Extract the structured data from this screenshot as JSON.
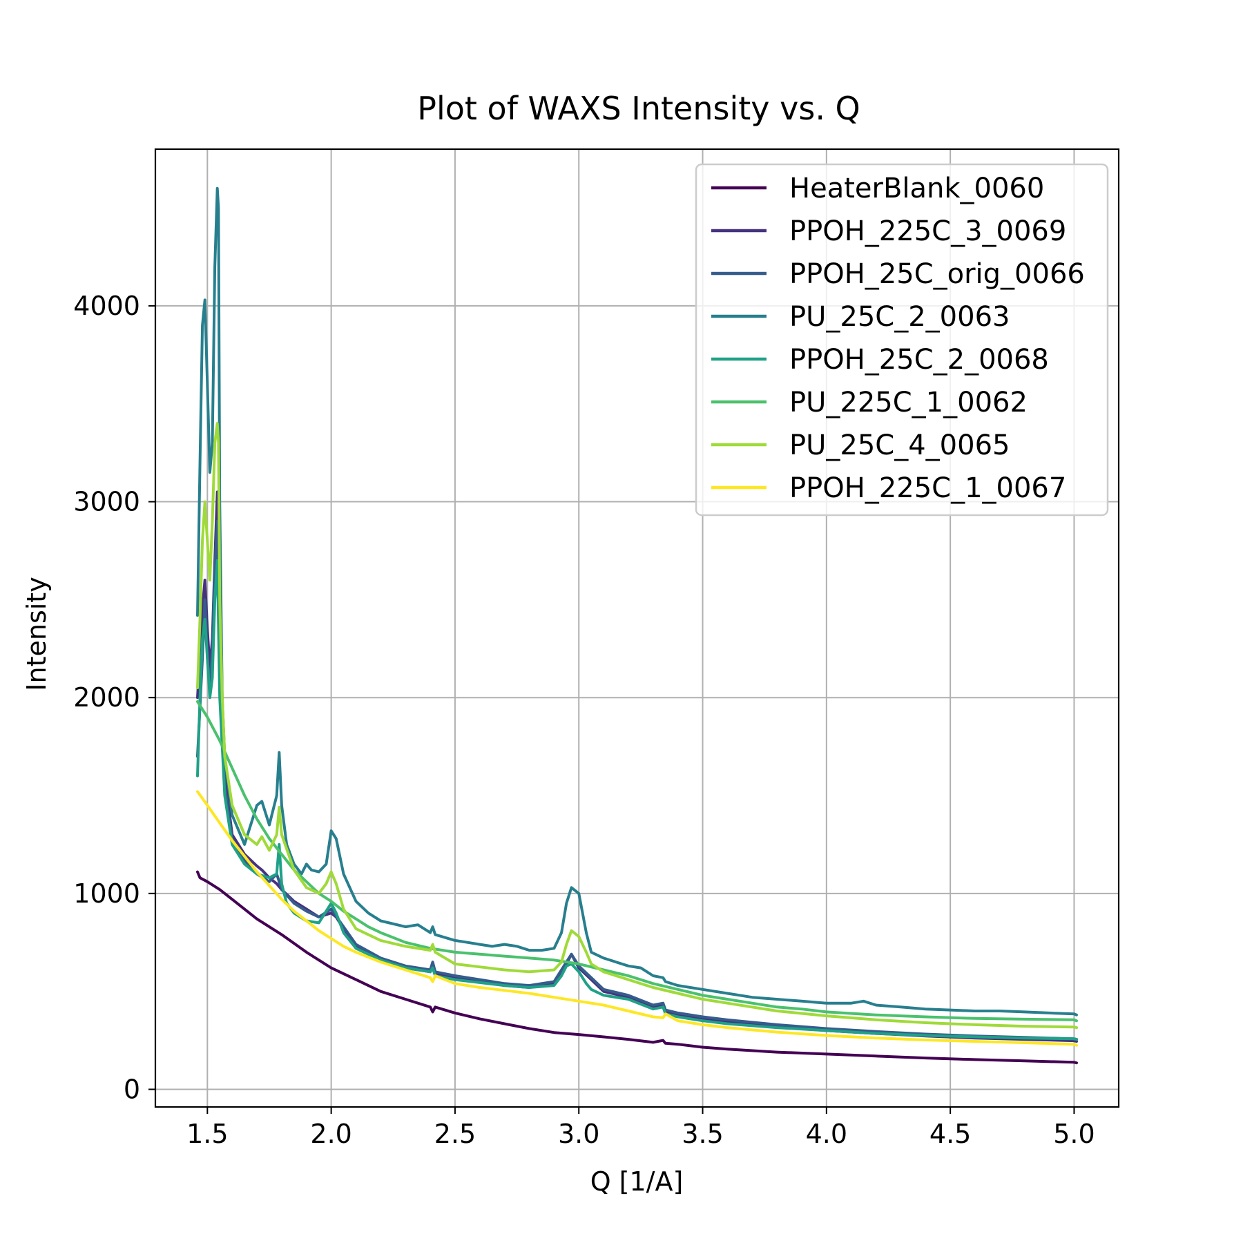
{
  "chart_data": {
    "type": "line",
    "title": "Plot of WAXS Intensity vs. Q",
    "xlabel": "Q [1/A]",
    "ylabel": "Intensity",
    "xlim": [
      1.29,
      5.18
    ],
    "ylim": [
      -90,
      4800
    ],
    "xticks": [
      1.5,
      2.0,
      2.5,
      3.0,
      3.5,
      4.0,
      4.5,
      5.0
    ],
    "xtick_labels": [
      "1.5",
      "2.0",
      "2.5",
      "3.0",
      "3.5",
      "4.0",
      "4.5",
      "5.0"
    ],
    "yticks": [
      0,
      1000,
      2000,
      3000,
      4000
    ],
    "ytick_labels": [
      "0",
      "1000",
      "2000",
      "3000",
      "4000"
    ],
    "grid": true,
    "legend_position": "upper right",
    "series": [
      {
        "name": "HeaterBlank_0060",
        "color": "#440154",
        "x": [
          1.46,
          1.47,
          1.5,
          1.55,
          1.6,
          1.7,
          1.8,
          1.9,
          2.0,
          2.1,
          2.2,
          2.3,
          2.4,
          2.41,
          2.42,
          2.5,
          2.6,
          2.7,
          2.8,
          2.9,
          3.0,
          3.1,
          3.2,
          3.3,
          3.34,
          3.35,
          3.4,
          3.5,
          3.6,
          3.8,
          4.0,
          4.2,
          4.4,
          4.6,
          4.8,
          5.0,
          5.01
        ],
        "y": [
          1110,
          1080,
          1060,
          1020,
          970,
          870,
          790,
          700,
          620,
          560,
          500,
          460,
          420,
          395,
          420,
          390,
          360,
          335,
          310,
          290,
          280,
          268,
          255,
          240,
          250,
          235,
          230,
          215,
          205,
          190,
          180,
          170,
          160,
          152,
          145,
          138,
          135
        ]
      },
      {
        "name": "PPOH_225C_3_0069",
        "color": "#46327e",
        "x": [
          1.46,
          1.48,
          1.49,
          1.5,
          1.51,
          1.52,
          1.53,
          1.54,
          1.55,
          1.57,
          1.6,
          1.65,
          1.7,
          1.72,
          1.75,
          1.78,
          1.8,
          1.85,
          1.9,
          1.95,
          2.0,
          2.02,
          2.05,
          2.1,
          2.2,
          2.3,
          2.4,
          2.41,
          2.42,
          2.5,
          2.6,
          2.7,
          2.8,
          2.9,
          2.95,
          2.97,
          3.0,
          3.05,
          3.1,
          3.2,
          3.3,
          3.34,
          3.35,
          3.4,
          3.5,
          3.6,
          3.8,
          4.0,
          4.2,
          4.4,
          4.6,
          4.8,
          5.0,
          5.01
        ],
        "y": [
          2000,
          2450,
          2600,
          2350,
          2150,
          2300,
          2700,
          3050,
          2200,
          1600,
          1300,
          1200,
          1140,
          1120,
          1080,
          1050,
          1020,
          960,
          920,
          880,
          900,
          880,
          820,
          730,
          660,
          620,
          600,
          640,
          590,
          570,
          550,
          530,
          520,
          540,
          640,
          690,
          620,
          560,
          500,
          470,
          420,
          430,
          395,
          380,
          360,
          345,
          320,
          300,
          285,
          272,
          262,
          255,
          248,
          245
        ]
      },
      {
        "name": "PPOH_25C_orig_0066",
        "color": "#365c8d",
        "x": [
          1.46,
          1.48,
          1.49,
          1.5,
          1.51,
          1.52,
          1.53,
          1.54,
          1.55,
          1.57,
          1.6,
          1.65,
          1.7,
          1.75,
          1.78,
          1.8,
          1.85,
          1.9,
          1.95,
          2.0,
          2.05,
          2.1,
          2.2,
          2.3,
          2.4,
          2.41,
          2.42,
          2.5,
          2.6,
          2.7,
          2.8,
          2.9,
          2.95,
          2.97,
          3.0,
          3.05,
          3.1,
          3.2,
          3.3,
          3.34,
          3.35,
          3.4,
          3.5,
          3.6,
          3.8,
          4.0,
          4.2,
          4.4,
          4.6,
          4.8,
          5.0,
          5.01
        ],
        "y": [
          1700,
          2200,
          2500,
          2200,
          2050,
          2250,
          2650,
          2900,
          2100,
          1550,
          1280,
          1170,
          1100,
          1060,
          1100,
          1020,
          950,
          910,
          880,
          920,
          830,
          740,
          670,
          630,
          610,
          650,
          600,
          580,
          560,
          540,
          530,
          550,
          650,
          690,
          630,
          570,
          510,
          480,
          430,
          440,
          405,
          390,
          370,
          355,
          330,
          310,
          295,
          282,
          272,
          265,
          258,
          255
        ]
      },
      {
        "name": "PU_25C_2_0063",
        "color": "#277f8e",
        "x": [
          1.46,
          1.47,
          1.48,
          1.49,
          1.5,
          1.51,
          1.52,
          1.53,
          1.54,
          1.545,
          1.55,
          1.56,
          1.57,
          1.6,
          1.65,
          1.7,
          1.72,
          1.75,
          1.78,
          1.79,
          1.8,
          1.82,
          1.85,
          1.88,
          1.9,
          1.92,
          1.95,
          1.98,
          2.0,
          2.02,
          2.05,
          2.1,
          2.15,
          2.2,
          2.3,
          2.35,
          2.4,
          2.41,
          2.42,
          2.5,
          2.55,
          2.6,
          2.65,
          2.7,
          2.75,
          2.8,
          2.85,
          2.9,
          2.93,
          2.95,
          2.97,
          3.0,
          3.03,
          3.05,
          3.1,
          3.15,
          3.2,
          3.25,
          3.3,
          3.34,
          3.35,
          3.4,
          3.5,
          3.6,
          3.7,
          3.8,
          3.9,
          4.0,
          4.1,
          4.15,
          4.2,
          4.3,
          4.4,
          4.5,
          4.6,
          4.7,
          4.8,
          4.9,
          5.0,
          5.01
        ],
        "y": [
          2420,
          3200,
          3900,
          4030,
          3600,
          3150,
          3300,
          4200,
          4600,
          4500,
          3000,
          2000,
          1700,
          1400,
          1250,
          1450,
          1470,
          1350,
          1500,
          1720,
          1450,
          1250,
          1150,
          1100,
          1150,
          1120,
          1110,
          1150,
          1320,
          1280,
          1100,
          960,
          900,
          860,
          830,
          840,
          800,
          830,
          790,
          760,
          750,
          740,
          730,
          740,
          730,
          710,
          710,
          720,
          800,
          950,
          1030,
          1000,
          800,
          700,
          670,
          650,
          630,
          620,
          580,
          570,
          550,
          530,
          510,
          490,
          470,
          460,
          450,
          440,
          440,
          450,
          430,
          420,
          410,
          405,
          400,
          400,
          395,
          390,
          385,
          380
        ]
      },
      {
        "name": "PPOH_25C_2_0068",
        "color": "#1fa187",
        "x": [
          1.46,
          1.47,
          1.48,
          1.49,
          1.5,
          1.51,
          1.52,
          1.53,
          1.54,
          1.55,
          1.57,
          1.6,
          1.65,
          1.7,
          1.75,
          1.78,
          1.79,
          1.8,
          1.82,
          1.85,
          1.9,
          1.95,
          2.0,
          2.02,
          2.05,
          2.1,
          2.2,
          2.3,
          2.4,
          2.41,
          2.42,
          2.5,
          2.6,
          2.7,
          2.8,
          2.9,
          2.93,
          2.95,
          2.97,
          3.0,
          3.03,
          3.05,
          3.1,
          3.2,
          3.3,
          3.34,
          3.35,
          3.4,
          3.5,
          3.6,
          3.8,
          4.0,
          4.2,
          4.4,
          4.6,
          4.8,
          5.0,
          5.01
        ],
        "y": [
          1600,
          2000,
          2300,
          2400,
          2200,
          2000,
          2100,
          2500,
          2700,
          2000,
          1500,
          1250,
          1150,
          1100,
          1080,
          1100,
          1250,
          1050,
          950,
          900,
          860,
          850,
          950,
          900,
          800,
          720,
          660,
          620,
          600,
          620,
          580,
          560,
          545,
          530,
          520,
          530,
          580,
          630,
          640,
          600,
          540,
          510,
          480,
          460,
          410,
          420,
          385,
          370,
          350,
          335,
          315,
          300,
          285,
          275,
          268,
          262,
          258,
          255
        ]
      },
      {
        "name": "PU_225C_1_0062",
        "color": "#4ac16d",
        "x": [
          1.46,
          1.5,
          1.55,
          1.6,
          1.65,
          1.7,
          1.75,
          1.8,
          1.85,
          1.9,
          1.95,
          2.0,
          2.05,
          2.1,
          2.15,
          2.2,
          2.3,
          2.4,
          2.5,
          2.6,
          2.7,
          2.8,
          2.9,
          3.0,
          3.1,
          3.2,
          3.3,
          3.4,
          3.5,
          3.6,
          3.7,
          3.8,
          3.9,
          4.0,
          4.2,
          4.4,
          4.6,
          4.8,
          5.0,
          5.01
        ],
        "y": [
          1980,
          1900,
          1780,
          1640,
          1500,
          1380,
          1280,
          1200,
          1120,
          1060,
          1000,
          960,
          910,
          870,
          830,
          800,
          750,
          720,
          700,
          690,
          680,
          670,
          660,
          640,
          610,
          580,
          540,
          510,
          480,
          460,
          440,
          420,
          410,
          395,
          380,
          370,
          362,
          358,
          355,
          350
        ]
      },
      {
        "name": "PU_25C_4_0065",
        "color": "#a0da39",
        "x": [
          1.46,
          1.47,
          1.48,
          1.49,
          1.5,
          1.51,
          1.52,
          1.53,
          1.54,
          1.545,
          1.55,
          1.56,
          1.57,
          1.6,
          1.65,
          1.7,
          1.72,
          1.75,
          1.78,
          1.79,
          1.8,
          1.85,
          1.9,
          1.95,
          1.98,
          2.0,
          2.02,
          2.05,
          2.1,
          2.2,
          2.3,
          2.4,
          2.41,
          2.42,
          2.5,
          2.6,
          2.7,
          2.8,
          2.9,
          2.93,
          2.95,
          2.97,
          3.0,
          3.03,
          3.05,
          3.1,
          3.2,
          3.3,
          3.4,
          3.5,
          3.6,
          3.8,
          4.0,
          4.2,
          4.4,
          4.6,
          4.8,
          5.0,
          5.01
        ],
        "y": [
          2050,
          2400,
          2800,
          3000,
          2800,
          2600,
          2900,
          3300,
          3400,
          3300,
          2500,
          2000,
          1700,
          1450,
          1300,
          1250,
          1290,
          1220,
          1300,
          1440,
          1300,
          1120,
          1030,
          1000,
          1050,
          1110,
          1050,
          920,
          820,
          760,
          730,
          710,
          740,
          700,
          640,
          625,
          610,
          600,
          610,
          650,
          740,
          810,
          780,
          700,
          640,
          600,
          560,
          520,
          490,
          460,
          440,
          400,
          375,
          355,
          340,
          330,
          322,
          318,
          315
        ]
      },
      {
        "name": "PPOH_225C_1_0067",
        "color": "#fde725",
        "x": [
          1.46,
          1.5,
          1.55,
          1.6,
          1.65,
          1.7,
          1.75,
          1.8,
          1.85,
          1.9,
          1.95,
          2.0,
          2.05,
          2.1,
          2.2,
          2.3,
          2.4,
          2.41,
          2.42,
          2.5,
          2.6,
          2.7,
          2.8,
          2.9,
          3.0,
          3.1,
          3.2,
          3.3,
          3.34,
          3.35,
          3.4,
          3.5,
          3.6,
          3.8,
          4.0,
          4.2,
          4.4,
          4.6,
          4.8,
          5.0,
          5.01
        ],
        "y": [
          1520,
          1450,
          1360,
          1270,
          1190,
          1110,
          1040,
          970,
          910,
          860,
          810,
          770,
          730,
          700,
          650,
          610,
          570,
          550,
          580,
          540,
          520,
          505,
          490,
          470,
          450,
          430,
          400,
          370,
          365,
          385,
          350,
          330,
          315,
          292,
          275,
          262,
          252,
          245,
          238,
          230,
          225
        ]
      }
    ]
  }
}
